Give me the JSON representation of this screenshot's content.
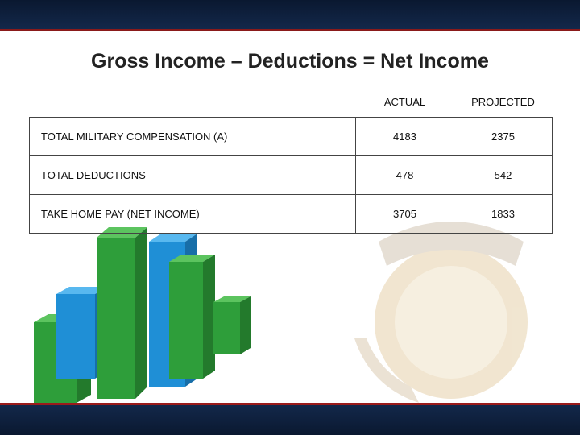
{
  "header": {
    "title": "Gross Income – Deductions = Net Income"
  },
  "table": {
    "columns": [
      "ACTUAL",
      "PROJECTED"
    ],
    "rows": [
      {
        "label": "TOTAL MILITARY COMPENSATION (A)",
        "values": [
          4183,
          2375
        ]
      },
      {
        "label": "TOTAL DEDUCTIONS",
        "values": [
          478,
          542
        ]
      },
      {
        "label": "TAKE HOME PAY (NET INCOME)",
        "values": [
          3705,
          1833
        ]
      }
    ]
  }
}
